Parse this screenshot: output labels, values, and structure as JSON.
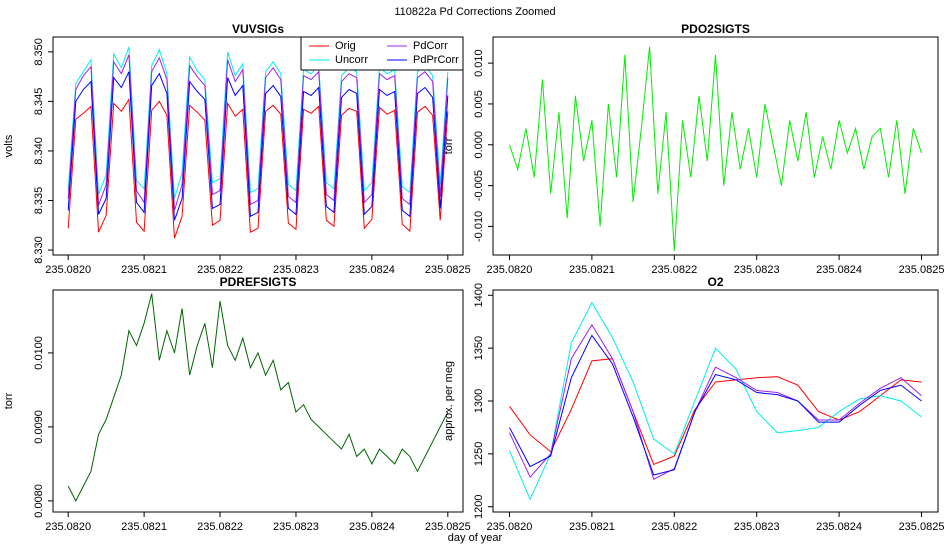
{
  "title": "110822a   Pd Corrections Zoomed",
  "xlabel": "day of year",
  "chart_data": [
    {
      "type": "line",
      "title": "VUVSIGs",
      "ylabel": "volts",
      "xlim": [
        235.08198,
        235.08252
      ],
      "ylim": [
        8.3295,
        8.3515
      ],
      "xticks": [
        {
          "value": 235.082,
          "label": "235.0820"
        },
        235.0821,
        235.0822,
        235.0823,
        235.0824,
        235.0825
      ],
      "yticks": [
        {
          "value": 8.33,
          "label": "8.330"
        },
        8.335,
        {
          "value": 8.34,
          "label": "8.340"
        },
        8.345,
        {
          "value": 8.35,
          "label": "8.350"
        }
      ],
      "legend": "topright",
      "x": [
        235.082,
        235.08201,
        235.08202,
        235.08203,
        235.08204,
        235.08205,
        235.08206,
        235.08207,
        235.08208,
        235.08209,
        235.0821,
        235.08211,
        235.08212,
        235.08213,
        235.08214,
        235.08215,
        235.08216,
        235.08217,
        235.08218,
        235.08219,
        235.0822,
        235.08221,
        235.08222,
        235.08223,
        235.08224,
        235.08225,
        235.08226,
        235.08227,
        235.08228,
        235.08229,
        235.0823,
        235.08231,
        235.08232,
        235.08233,
        235.08234,
        235.08235,
        235.08236,
        235.08237,
        235.08238,
        235.08239,
        235.0824,
        235.08241,
        235.08242,
        235.08243,
        235.08244,
        235.08245,
        235.08246,
        235.08247,
        235.08248,
        235.08249,
        235.0825
      ],
      "series": [
        {
          "name": "Orig",
          "color": "#ff0000",
          "values": [
            8.3322,
            8.3432,
            8.3438,
            8.3445,
            8.3318,
            8.3335,
            8.3448,
            8.344,
            8.3452,
            8.3328,
            8.3319,
            8.3441,
            8.345,
            8.3436,
            8.3312,
            8.3334,
            8.3446,
            8.3439,
            8.3431,
            8.3325,
            8.333,
            8.3448,
            8.3435,
            8.3442,
            8.3318,
            8.3322,
            8.344,
            8.3446,
            8.3437,
            8.3327,
            8.3321,
            8.3442,
            8.3438,
            8.3445,
            8.333,
            8.3324,
            8.3436,
            8.3443,
            8.344,
            8.3322,
            8.3331,
            8.3444,
            8.3437,
            8.3441,
            8.3326,
            8.3319,
            8.3439,
            8.3445,
            8.3436,
            8.333,
            8.344
          ]
        },
        {
          "name": "Uncorr",
          "color": "#00eeee",
          "values": [
            8.336,
            8.3468,
            8.348,
            8.3492,
            8.3356,
            8.3376,
            8.3498,
            8.3484,
            8.3505,
            8.337,
            8.3362,
            8.3486,
            8.3502,
            8.3478,
            8.3352,
            8.3378,
            8.3495,
            8.3481,
            8.3472,
            8.3368,
            8.3372,
            8.35,
            8.3476,
            8.3488,
            8.3358,
            8.3362,
            8.348,
            8.349,
            8.3478,
            8.3366,
            8.336,
            8.3482,
            8.3478,
            8.3486,
            8.3368,
            8.3362,
            8.3476,
            8.3484,
            8.348,
            8.336,
            8.3368,
            8.3484,
            8.3478,
            8.3482,
            8.3364,
            8.3358,
            8.348,
            8.3486,
            8.3476,
            8.3366,
            8.348
          ]
        },
        {
          "name": "PdCorr",
          "color": "#a020f0",
          "values": [
            8.3352,
            8.3462,
            8.3476,
            8.3485,
            8.3345,
            8.3366,
            8.349,
            8.3478,
            8.3497,
            8.336,
            8.3348,
            8.348,
            8.3494,
            8.3472,
            8.334,
            8.3366,
            8.3486,
            8.3475,
            8.3466,
            8.3356,
            8.336,
            8.3492,
            8.347,
            8.3482,
            8.3346,
            8.335,
            8.3474,
            8.3484,
            8.3472,
            8.3354,
            8.3348,
            8.3476,
            8.3472,
            8.348,
            8.3356,
            8.335,
            8.347,
            8.3478,
            8.3474,
            8.3348,
            8.3356,
            8.3478,
            8.3472,
            8.3476,
            8.3352,
            8.3346,
            8.3474,
            8.348,
            8.347,
            8.3354,
            8.3474
          ]
        },
        {
          "name": "PdPrCorr",
          "color": "#0000ff",
          "values": [
            8.334,
            8.345,
            8.3462,
            8.347,
            8.3336,
            8.3352,
            8.3474,
            8.3464,
            8.348,
            8.3348,
            8.3338,
            8.3466,
            8.3478,
            8.3458,
            8.333,
            8.3352,
            8.347,
            8.346,
            8.3452,
            8.3342,
            8.3346,
            8.3474,
            8.3456,
            8.3466,
            8.3334,
            8.3338,
            8.3458,
            8.3466,
            8.3455,
            8.3342,
            8.3336,
            8.346,
            8.3456,
            8.3464,
            8.3344,
            8.3338,
            8.3454,
            8.3462,
            8.3458,
            8.3336,
            8.3344,
            8.3462,
            8.3456,
            8.346,
            8.334,
            8.3334,
            8.3458,
            8.3464,
            8.3454,
            8.3342,
            8.3456
          ]
        }
      ]
    },
    {
      "type": "line",
      "title": "PDO2SIGTS",
      "ylabel": "torr",
      "color": "#00ee00",
      "xlim": [
        235.08198,
        235.08252
      ],
      "ylim": [
        -0.0135,
        0.0132
      ],
      "xticks": [
        {
          "value": 235.082,
          "label": "235.0820"
        },
        235.0821,
        235.0822,
        235.0823,
        235.0824,
        235.0825
      ],
      "yticks": [
        {
          "value": -0.01,
          "label": "-0.010"
        },
        -0.005,
        {
          "value": 0,
          "label": "0.000"
        },
        0.005,
        {
          "value": 0.01,
          "label": "0.010"
        }
      ],
      "x": [
        235.082,
        235.08201,
        235.08202,
        235.08203,
        235.08204,
        235.08205,
        235.08206,
        235.08207,
        235.08208,
        235.08209,
        235.0821,
        235.08211,
        235.08212,
        235.08213,
        235.08214,
        235.08215,
        235.08216,
        235.08217,
        235.08218,
        235.08219,
        235.0822,
        235.08221,
        235.08222,
        235.08223,
        235.08224,
        235.08225,
        235.08226,
        235.08227,
        235.08228,
        235.08229,
        235.0823,
        235.08231,
        235.08232,
        235.08233,
        235.08234,
        235.08235,
        235.08236,
        235.08237,
        235.08238,
        235.08239,
        235.0824,
        235.08241,
        235.08242,
        235.08243,
        235.08244,
        235.08245,
        235.08246,
        235.08247,
        235.08248,
        235.08249,
        235.0825
      ],
      "values": [
        0.0,
        -0.003,
        0.002,
        -0.004,
        0.008,
        -0.006,
        0.004,
        -0.009,
        0.006,
        -0.002,
        0.003,
        -0.01,
        0.005,
        -0.004,
        0.011,
        -0.007,
        0.002,
        0.012,
        -0.006,
        0.004,
        -0.013,
        0.003,
        -0.004,
        0.006,
        -0.002,
        0.011,
        -0.005,
        0.004,
        -0.003,
        0.002,
        -0.004,
        0.005,
        0.0,
        -0.005,
        0.003,
        -0.002,
        0.004,
        -0.004,
        0.001,
        -0.003,
        0.003,
        -0.001,
        0.002,
        -0.003,
        0.001,
        0.002,
        -0.004,
        0.003,
        -0.006,
        0.002,
        -0.001
      ]
    },
    {
      "type": "line",
      "title": "PDREFSIGTS",
      "ylabel": "torr",
      "color": "#006400",
      "xlim": [
        235.08198,
        235.08252
      ],
      "ylim": [
        0.00785,
        0.01085
      ],
      "xticks": [
        {
          "value": 235.082,
          "label": "235.0820"
        },
        235.0821,
        235.0822,
        235.0823,
        235.0824,
        235.0825
      ],
      "yticks": [
        {
          "value": 0.008,
          "label": "0.0080"
        },
        {
          "value": 0.009,
          "label": "0.0090"
        },
        {
          "value": 0.01,
          "label": "0.0100"
        }
      ],
      "x": [
        235.082,
        235.08201,
        235.08202,
        235.08203,
        235.08204,
        235.08205,
        235.08206,
        235.08207,
        235.08208,
        235.08209,
        235.0821,
        235.08211,
        235.08212,
        235.08213,
        235.08214,
        235.08215,
        235.08216,
        235.08217,
        235.08218,
        235.08219,
        235.0822,
        235.08221,
        235.08222,
        235.08223,
        235.08224,
        235.08225,
        235.08226,
        235.08227,
        235.08228,
        235.08229,
        235.0823,
        235.08231,
        235.08232,
        235.08233,
        235.08234,
        235.08235,
        235.08236,
        235.08237,
        235.08238,
        235.08239,
        235.0824,
        235.08241,
        235.08242,
        235.08243,
        235.08244,
        235.08245,
        235.08246,
        235.08247,
        235.08248,
        235.08249,
        235.0825
      ],
      "values": [
        0.0082,
        0.008,
        0.0082,
        0.0084,
        0.0089,
        0.0091,
        0.0094,
        0.0097,
        0.0103,
        0.0101,
        0.0104,
        0.0108,
        0.0099,
        0.0103,
        0.01,
        0.0106,
        0.0097,
        0.0101,
        0.0104,
        0.0098,
        0.0107,
        0.0101,
        0.0099,
        0.0102,
        0.0098,
        0.01,
        0.0097,
        0.0099,
        0.0095,
        0.0096,
        0.0092,
        0.0093,
        0.0091,
        0.009,
        0.0089,
        0.0088,
        0.0087,
        0.0089,
        0.0086,
        0.0087,
        0.0085,
        0.0087,
        0.0086,
        0.0085,
        0.0087,
        0.0086,
        0.0084,
        0.0086,
        0.0088,
        0.009,
        0.0092
      ]
    },
    {
      "type": "line",
      "title": "O2",
      "ylabel": "approx. per meg",
      "xlim": [
        235.08198,
        235.08252
      ],
      "ylim": [
        1195,
        1405
      ],
      "xticks": [
        {
          "value": 235.082,
          "label": "235.0820"
        },
        235.0821,
        235.0822,
        235.0823,
        235.0824,
        235.0825
      ],
      "yticks": [
        1200,
        1250,
        1300,
        1350,
        1400
      ],
      "x": [
        235.082,
        235.082025,
        235.08205,
        235.082075,
        235.0821,
        235.082125,
        235.08215,
        235.082175,
        235.0822,
        235.082225,
        235.08225,
        235.082275,
        235.0823,
        235.082325,
        235.08235,
        235.082375,
        235.0824,
        235.082425,
        235.08245,
        235.082475,
        235.0825
      ],
      "series": [
        {
          "color": "#ff0000",
          "values": [
            1295,
            1268,
            1252,
            1292,
            1338,
            1340,
            1290,
            1240,
            1248,
            1292,
            1318,
            1320,
            1322,
            1323,
            1315,
            1290,
            1282,
            1290,
            1305,
            1320,
            1318
          ]
        },
        {
          "color": "#00eeee",
          "values": [
            1253,
            1207,
            1250,
            1355,
            1393,
            1360,
            1318,
            1264,
            1250,
            1300,
            1350,
            1330,
            1290,
            1270,
            1272,
            1275,
            1290,
            1302,
            1305,
            1300,
            1285
          ]
        },
        {
          "color": "#a020f0",
          "values": [
            1270,
            1228,
            1250,
            1340,
            1372,
            1340,
            1290,
            1226,
            1236,
            1290,
            1332,
            1322,
            1310,
            1308,
            1300,
            1282,
            1282,
            1298,
            1312,
            1322,
            1305
          ]
        },
        {
          "color": "#0000ff",
          "values": [
            1275,
            1238,
            1248,
            1322,
            1362,
            1335,
            1285,
            1230,
            1235,
            1290,
            1325,
            1320,
            1308,
            1306,
            1300,
            1280,
            1280,
            1296,
            1310,
            1315,
            1300
          ]
        }
      ]
    }
  ]
}
